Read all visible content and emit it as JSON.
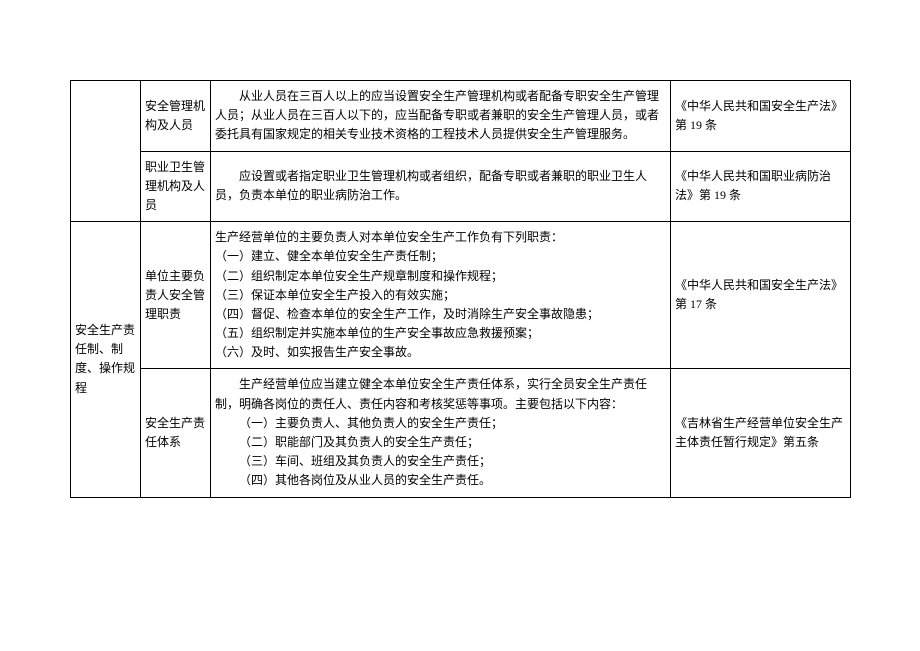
{
  "rows": [
    {
      "cat1": "",
      "cat2": "安全管理机构及人员",
      "content": "　　从业人员在三百人以上的应当设置安全生产管理机构或者配备专职安全生产管理人员；从业人员在三百人以下的，应当配备专职或者兼职的安全生产管理人员，或者委托具有国家规定的相关专业技术资格的工程技术人员提供安全生产管理服务。",
      "law": "《中华人民共和国安全生产法》第 19 条"
    },
    {
      "cat1": "",
      "cat2": "职业卫生管理机构及人员",
      "content": "　　应设置或者指定职业卫生管理机构或者组织，配备专职或者兼职的职业卫生人员，负责本单位的职业病防治工作。",
      "law": "《中华人民共和国职业病防治法》第 19 条"
    },
    {
      "cat1": "安全生产责任制、制度、操作规程",
      "cat2a": "单位主要负责人安全管理职责",
      "content_a_lines": [
        "生产经营单位的主要负责人对本单位安全生产工作负有下列职责：",
        "（一）建立、健全本单位安全生产责任制；",
        "（二）组织制定本单位安全生产规章制度和操作规程；",
        "（三）保证本单位安全生产投入的有效实施；",
        "（四）督促、检查本单位的安全生产工作，及时消除生产安全事故隐患；",
        "（五）组织制定并实施本单位的生产安全事故应急救援预案；",
        "（六）及时、如实报告生产安全事故。"
      ],
      "law_a": "《中华人民共和国安全生产法》第 17 条",
      "cat2b": "安全生产责任体系",
      "content_b_intro": "　　生产经营单位应当建立健全本单位安全生产责任体系，实行全员安全生产责任制，明确各岗位的责任人、责任内容和考核奖惩等事项。主要包括以下内容：",
      "content_b_lines": [
        "（一）主要负责人、其他负责人的安全生产责任；",
        "（二）职能部门及其负责人的安全生产责任；",
        "（三）车间、班组及其负责人的安全生产责任；",
        "（四）其他各岗位及从业人员的安全生产责任。"
      ],
      "law_b": "《吉林省生产经营单位安全生产主体责任暂行规定》第五条"
    }
  ]
}
